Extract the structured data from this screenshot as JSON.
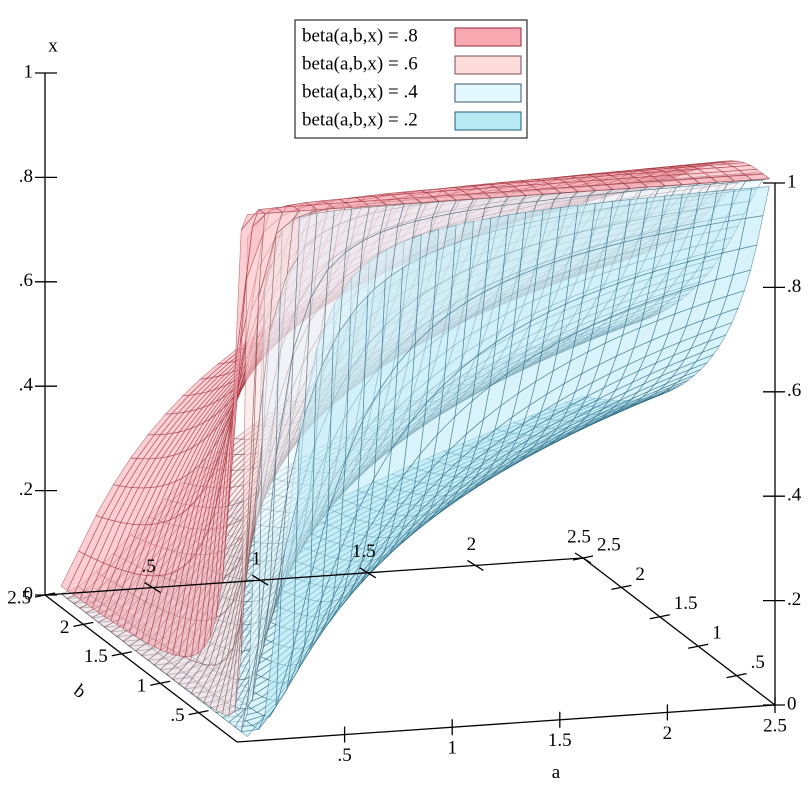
{
  "chart_data": {
    "type": "isosurface3d",
    "x_label": "a",
    "y_label": "b",
    "z_label": "x",
    "xlim": [
      0,
      2.5
    ],
    "ylim": [
      0,
      2.5
    ],
    "zlim": [
      0,
      1
    ],
    "xticks": [
      {
        "value": 0.5,
        "label": ".5"
      },
      1,
      1.5,
      2,
      2.5
    ],
    "yticks": [
      {
        "value": 0.5,
        "label": ".5"
      },
      1,
      1.5,
      2,
      2.5
    ],
    "zticks": [
      0,
      {
        "value": 0.2,
        "label": ".2"
      },
      {
        "value": 0.4,
        "label": ".4"
      },
      {
        "value": 0.6,
        "label": ".6"
      },
      {
        "value": 0.8,
        "label": ".8"
      },
      1
    ],
    "series": [
      {
        "name": "beta(a,b,x) = .8",
        "value": 0.8,
        "color": "#f7a8b0",
        "line_color": "#9a2a34"
      },
      {
        "name": "beta(a,b,x) = .6",
        "value": 0.6,
        "color": "#ffdcdc",
        "line_color": "#7a4a50"
      },
      {
        "name": "beta(a,b,x) = .4",
        "value": 0.4,
        "color": "#e4f8ff",
        "line_color": "#3a5a68"
      },
      {
        "name": "beta(a,b,x) = .2",
        "value": 0.2,
        "color": "#b8eaf6",
        "line_color": "#1f5f78"
      }
    ]
  }
}
